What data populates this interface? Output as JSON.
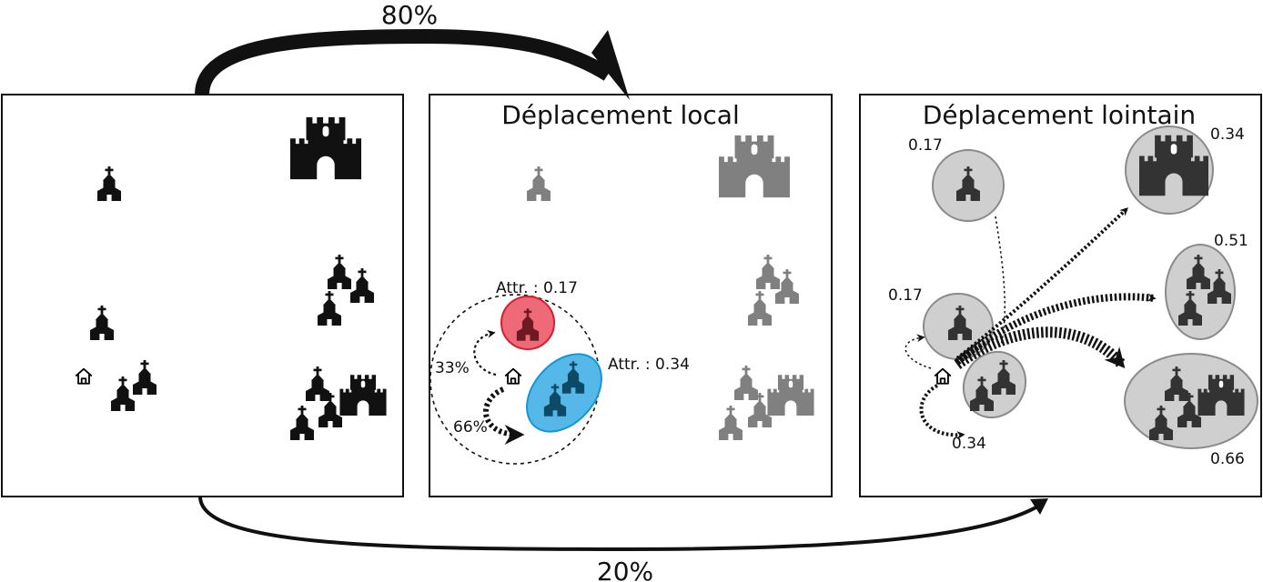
{
  "transitions": {
    "top_percent": "80%",
    "bottom_percent": "20%"
  },
  "panel_local": {
    "title": "Déplacement local",
    "attr_red": "Attr. : 0.17",
    "attr_blue": "Attr. : 0.34",
    "pct_to_red": "33%",
    "pct_to_blue": "66%"
  },
  "panel_far": {
    "title": "Déplacement lointain",
    "labels": {
      "church_far": "0.17",
      "castle": "0.34",
      "church_group": "0.51",
      "near_church": "0.17",
      "near_pair": "0.34",
      "town": "0.66"
    }
  },
  "colors": {
    "red_zone": "#ef6a78",
    "blue_zone": "#56b8e8",
    "grey_zone": "#cfcfcf",
    "inactive_icon": "#808080"
  }
}
